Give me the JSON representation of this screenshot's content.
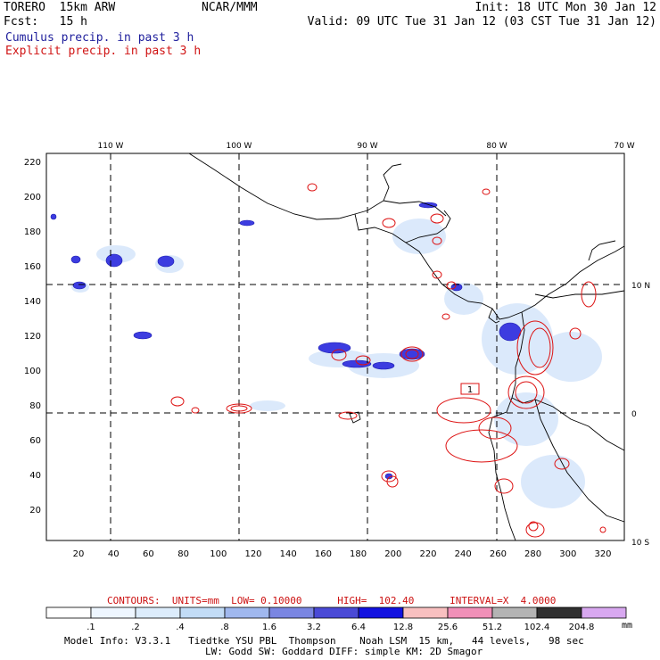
{
  "header": {
    "model": "TORERO  15km ARW",
    "forecast": "Fcst:   15 h",
    "center": "NCAR/MMM",
    "init": "Init: 18 UTC Mon 30 Jan 12",
    "valid": "Valid: 09 UTC Tue 31 Jan 12 (03 CST Tue 31 Jan 12)"
  },
  "legend": {
    "cumulus": "Cumulus precip. in past 3 h",
    "explicit": "Explicit precip. in past 3 h"
  },
  "axes": {
    "lon_labels": [
      "110 W",
      "100 W",
      "90 W",
      "80 W",
      "70 W"
    ],
    "lat_labels": [
      "10 N",
      "0",
      "10 S"
    ],
    "x_ticks": [
      "20",
      "40",
      "60",
      "80",
      "100",
      "120",
      "140",
      "160",
      "180",
      "200",
      "220",
      "240",
      "260",
      "280",
      "300",
      "320"
    ],
    "y_ticks": [
      "20",
      "40",
      "60",
      "80",
      "100",
      "120",
      "140",
      "160",
      "180",
      "200",
      "220"
    ]
  },
  "map_marker": "1",
  "contours": {
    "info": "CONTOURS:  UNITS=mm  LOW= 0.10000      HIGH=  102.40      INTERVAL=X  4.0000"
  },
  "colorbar": {
    "labels": [
      ".1",
      ".2",
      ".4",
      ".8",
      "1.6",
      "3.2",
      "6.4",
      "12.8",
      "25.6",
      "51.2",
      "102.4",
      "204.8"
    ],
    "unit": "mm",
    "colors": [
      "#ffffff",
      "#eef6ff",
      "#dcecfb",
      "#c2dcf6",
      "#a0b8ee",
      "#7a86e2",
      "#4a4ad6",
      "#1212e0",
      "#f8c0c0",
      "#f090b8",
      "#b4b4b4",
      "#303030",
      "#d8a8f0"
    ]
  },
  "footer": {
    "line1": "Model Info: V3.3.1   Tiedtke YSU PBL  Thompson    Noah LSM  15 km,   44 levels,   98 sec",
    "line2": "LW: Godd SW: Goddard DIFF: simple KM: 2D Smagor"
  },
  "colors": {
    "cumulus_text": "#1e1e9c",
    "explicit_text": "#d01414",
    "contour_red": "#dd1111",
    "precip_blue": "#3a3ae0",
    "precip_light": "#c8dcf8"
  }
}
